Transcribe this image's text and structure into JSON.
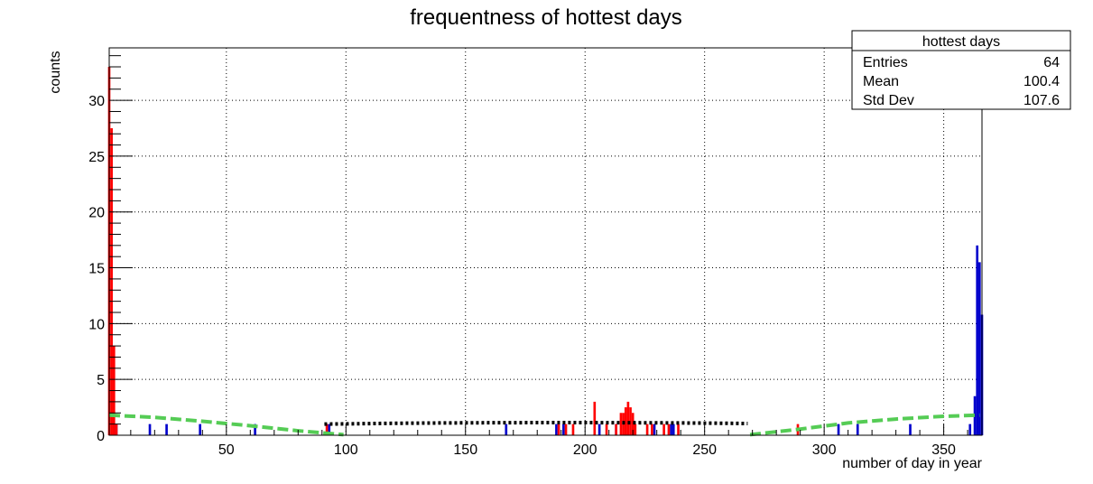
{
  "chart_data": {
    "type": "bar",
    "title": "frequentness of hottest days",
    "xlabel": "number of day in year",
    "ylabel": "counts",
    "xlim": [
      1,
      366
    ],
    "ylim": [
      0,
      34.7
    ],
    "grid": true,
    "x_ticks": [
      50,
      100,
      150,
      200,
      250,
      300,
      350
    ],
    "y_ticks": [
      0,
      5,
      10,
      15,
      20,
      25,
      30
    ],
    "series": [
      {
        "color": "#0000cc",
        "x": [
          4,
          18,
          25,
          39,
          62,
          93,
          167,
          188,
          191,
          206,
          213,
          229,
          236,
          237,
          306,
          314,
          336,
          361,
          363,
          364,
          365,
          366
        ],
        "values": [
          1,
          1,
          1,
          1,
          1,
          1,
          1,
          1,
          1,
          1,
          1,
          1,
          1,
          1,
          1,
          1,
          1,
          1,
          3.5,
          17,
          15.5,
          10.8
        ]
      },
      {
        "color": "#ff0000",
        "x": [
          1,
          2,
          3,
          4,
          92,
          189,
          192,
          195,
          204,
          209,
          213,
          215,
          216,
          217,
          218,
          219,
          220,
          221,
          226,
          228,
          233,
          235,
          239,
          289
        ],
        "values": [
          33,
          27.5,
          8,
          1,
          1,
          1,
          1,
          1,
          3,
          1,
          1,
          2,
          2,
          2.5,
          3,
          2.5,
          2,
          1,
          1,
          1,
          1,
          1,
          1,
          1
        ]
      }
    ],
    "fits": [
      {
        "color": "#000000",
        "style": "dotted",
        "x": [
          91,
          100,
          120,
          140,
          160,
          180,
          200,
          220,
          240,
          260,
          268
        ],
        "y": [
          1.0,
          1.02,
          1.07,
          1.1,
          1.12,
          1.13,
          1.13,
          1.12,
          1.1,
          1.07,
          1.05
        ]
      },
      {
        "color": "#55cc55",
        "style": "dashed",
        "x": [
          1,
          20,
          40,
          60,
          80,
          99
        ],
        "y": [
          1.8,
          1.6,
          1.25,
          0.85,
          0.4,
          0.05
        ]
      },
      {
        "color": "#55cc55",
        "style": "dashed",
        "x": [
          269,
          290,
          310,
          330,
          350,
          365
        ],
        "y": [
          0.05,
          0.55,
          1.1,
          1.45,
          1.7,
          1.8
        ]
      }
    ],
    "stats_box": {
      "title": "hottest days",
      "rows": [
        {
          "label": "Entries",
          "value": "64"
        },
        {
          "label": "Mean",
          "value": "100.4"
        },
        {
          "label": "Std Dev",
          "value": "107.6"
        }
      ]
    }
  }
}
